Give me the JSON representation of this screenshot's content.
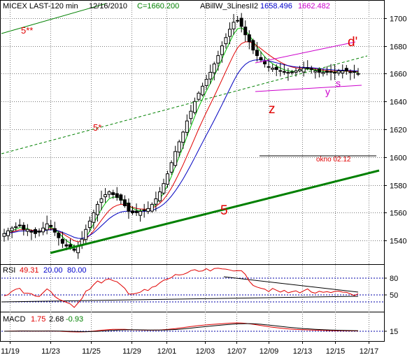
{
  "header": {
    "symbol": "MICEX LAST-120 min",
    "date": "12/16/2010",
    "close": "C=1660.200",
    "indicator": "ABillW_3LinesII2",
    "val1": "1658.496",
    "val2": "1662.482"
  },
  "rsi_header": {
    "label": "RSI",
    "value": "49.31",
    "low": "20.00",
    "high": "80.00"
  },
  "macd_header": {
    "label": "MACD",
    "v1": "1.75",
    "v2": "2.68",
    "v3": "-0.93"
  },
  "annotations": {
    "five_double_star": "5**",
    "five_star": "5*",
    "five": "5",
    "z": "z",
    "d_prime": "d'",
    "y": "y",
    "s": "s",
    "okno": "okno 02.12"
  },
  "colors": {
    "candles": "#000000",
    "ma_fast": "#00c000",
    "ma_mid": "#e00000",
    "ma_slow": "#0000c0",
    "trend": "#008000",
    "channel": "#cc00cc",
    "annotation": "#e00000",
    "rsi": "#e00000",
    "macd": "#e00000",
    "header_blue": "#0000cc",
    "header_green": "#008000"
  },
  "chart_data": {
    "type": "candlestick",
    "y_ticks": [
      1540,
      1560,
      1580,
      1600,
      1620,
      1640,
      1660,
      1680,
      1700
    ],
    "ylim": [
      1524,
      1712
    ],
    "x_labels": [
      "11/19",
      "11/23",
      "11/25",
      "11/29",
      "12/01",
      "12/03",
      "12/07",
      "12/09",
      "12/13",
      "12/15",
      "12/17"
    ],
    "grid": true,
    "rsi_ticks": [
      80,
      50
    ],
    "macd_ticks": [
      15
    ],
    "closes": [
      1545,
      1547,
      1549,
      1550,
      1551,
      1548,
      1548,
      1546,
      1545,
      1546,
      1549,
      1552,
      1550,
      1546,
      1542,
      1538,
      1536,
      1535,
      1533,
      1536,
      1541,
      1548,
      1554,
      1560,
      1566,
      1570,
      1573,
      1575,
      1573,
      1571,
      1569,
      1565,
      1561,
      1560,
      1560,
      1561,
      1562,
      1563,
      1566,
      1570,
      1575,
      1581,
      1588,
      1596,
      1604,
      1611,
      1618,
      1626,
      1633,
      1640,
      1646,
      1651,
      1656,
      1661,
      1667,
      1673,
      1680,
      1686,
      1692,
      1697,
      1698,
      1694,
      1688,
      1683,
      1677,
      1673,
      1670,
      1667,
      1665,
      1664,
      1663,
      1662,
      1661,
      1661,
      1661,
      1662,
      1663,
      1664,
      1664,
      1663,
      1662,
      1661,
      1661,
      1661,
      1661,
      1661,
      1662,
      1662,
      1662,
      1661,
      1661,
      1660
    ]
  }
}
